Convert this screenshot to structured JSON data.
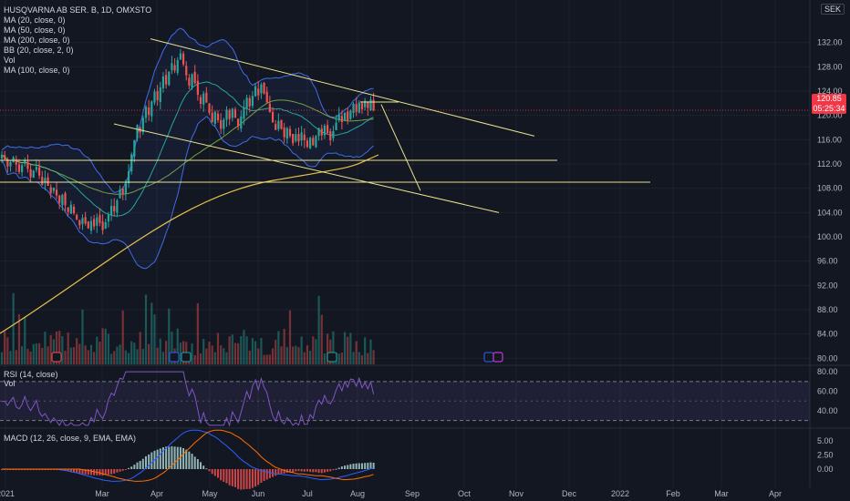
{
  "header": {
    "symbol": "HUSQVARNA AB SER. B, 1D, OMXSTO",
    "indicators": [
      "MA (20, close, 0)",
      "MA (50, close, 0)",
      "MA (200, close, 0)",
      "BB (20, close, 2, 0)",
      "Vol",
      "MA (100, close, 0)"
    ],
    "currency": "SEK"
  },
  "last_price": {
    "value": "120.85",
    "countdown": "05:25:34"
  },
  "rsi_pane": {
    "label": "RSI (14, close)",
    "sub": "Vol"
  },
  "macd_pane": {
    "label": "MACD (12, 26, close, 9, EMA, EMA)"
  },
  "colors": {
    "bg": "#131722",
    "up": "#26a69a",
    "down": "#ef5350",
    "trend": "#e8e28f",
    "ma200": "#e5c24a",
    "bb": "#3f6ce8",
    "rsi": "#7e57c2"
  },
  "chart_data": {
    "type": "candlestick",
    "price_axis": {
      "ticks": [
        "132.00",
        "128.00",
        "124.00",
        "120.00",
        "116.00",
        "112.00",
        "108.00",
        "104.00",
        "100.00",
        "96.00",
        "92.00",
        "88.00",
        "84.00",
        "80.00"
      ],
      "ylim": [
        79,
        136
      ]
    },
    "rsi_axis": {
      "ticks": [
        "80.00",
        "60.00",
        "40.00"
      ],
      "levels": [
        70,
        30
      ]
    },
    "macd_axis": {
      "ticks": [
        "5.00",
        "2.50",
        "0.00"
      ]
    },
    "x_ticks": [
      "2021",
      "Mar",
      "Apr",
      "May",
      "Jun",
      "Jul",
      "Aug",
      "Sep",
      "Oct",
      "Nov",
      "Dec",
      "2022",
      "Feb",
      "Mar",
      "Apr"
    ],
    "closes": [
      113.5,
      112.8,
      111.6,
      112.3,
      113.1,
      111.9,
      110.7,
      111.8,
      112.6,
      111.2,
      109.8,
      110.9,
      111.5,
      110.1,
      108.6,
      109.7,
      108.4,
      107.2,
      108.1,
      106.8,
      105.6,
      106.9,
      105.2,
      104.1,
      105.3,
      103.9,
      102.8,
      101.9,
      103.1,
      102.2,
      101.4,
      102.6,
      101.7,
      103.2,
      102.3,
      101.1,
      102.4,
      103.6,
      105.1,
      104.2,
      106.0,
      107.8,
      107.0,
      108.9,
      110.8,
      113.6,
      115.9,
      118.4,
      117.2,
      119.6,
      121.4,
      120.1,
      122.3,
      123.9,
      122.5,
      124.6,
      126.4,
      125.1,
      127.2,
      128.6,
      127.4,
      129.1,
      130.2,
      128.4,
      126.6,
      124.9,
      126.8,
      125.3,
      123.4,
      121.9,
      123.6,
      122.1,
      120.4,
      118.9,
      120.6,
      119.2,
      117.8,
      119.3,
      120.9,
      119.4,
      121.1,
      119.6,
      118.2,
      119.8,
      121.3,
      122.9,
      121.5,
      123.2,
      124.8,
      123.3,
      125.1,
      123.6,
      122.1,
      120.5,
      118.9,
      117.6,
      119.1,
      117.8,
      116.4,
      117.9,
      116.6,
      115.4,
      116.9,
      115.7,
      117.2,
      115.9,
      114.8,
      116.3,
      115.1,
      116.6,
      117.9,
      116.7,
      118.3,
      117.1,
      115.9,
      117.4,
      118.8,
      120.1,
      118.9,
      120.4,
      119.2,
      120.8,
      121.9,
      120.6,
      122.1,
      121.0,
      122.4,
      121.2,
      122.6,
      120.85
    ],
    "annotations": [
      "descending channel upper",
      "descending channel lower",
      "support 112.6",
      "support 109"
    ]
  }
}
